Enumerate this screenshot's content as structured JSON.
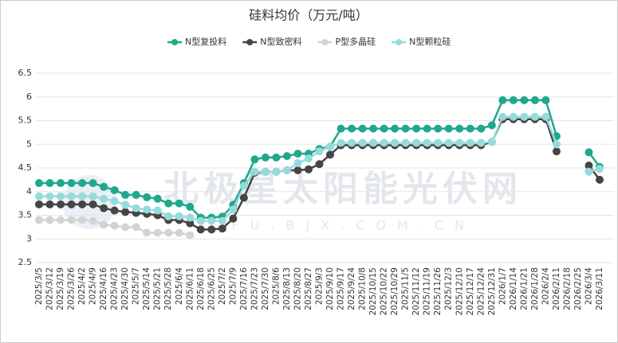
{
  "chart_data": {
    "type": "line",
    "title": "硅料均价（万元/吨）",
    "watermark": "北极星太阳能光伏网",
    "watermark_sub": "GFU.BJX.COM.CN",
    "categories": [
      "2025/3/5",
      "2025/3/12",
      "2025/3/19",
      "2025/3/26",
      "2025/4/2",
      "2025/4/9",
      "2025/4/16",
      "2025/4/23",
      "2025/4/30",
      "2025/5/7",
      "2025/5/14",
      "2025/5/21",
      "2025/5/28",
      "2025/6/4",
      "2025/6/11",
      "2025/6/18",
      "2025/6/25",
      "2025/7/2",
      "2025/7/9",
      "2025/7/16",
      "2025/7/23",
      "2025/7/30",
      "2025/8/6",
      "2025/8/13",
      "2025/8/20",
      "2025/8/27",
      "2025/9/3",
      "2025/9/10",
      "2025/9/17",
      "2025/9/24",
      "2025/10/8",
      "2025/10/15",
      "2025/10/22",
      "2025/10/29",
      "2025/11/5",
      "2025/11/12",
      "2025/11/19",
      "2025/11/26",
      "2025/12/3",
      "2025/12/10",
      "2025/12/17",
      "2025/12/24",
      "2025/12/31",
      "2026/1/7",
      "2026/1/14",
      "2026/1/21",
      "2026/1/28",
      "2026/2/4",
      "2026/2/11",
      "2026/2/18",
      "2026/2/25",
      "2026/3/4",
      "2026/3/11"
    ],
    "series": [
      {
        "name": "N型复投料",
        "color": "#1fa88c",
        "values": [
          4.18,
          4.18,
          4.18,
          4.18,
          4.18,
          4.18,
          4.1,
          4.03,
          3.93,
          3.93,
          3.88,
          3.85,
          3.75,
          3.75,
          3.68,
          3.45,
          3.45,
          3.47,
          3.72,
          4.18,
          4.68,
          4.72,
          4.72,
          4.75,
          4.8,
          4.8,
          4.9,
          4.95,
          5.33,
          5.33,
          5.33,
          5.33,
          5.33,
          5.33,
          5.33,
          5.33,
          5.33,
          5.33,
          5.33,
          5.33,
          5.33,
          5.33,
          5.4,
          5.93,
          5.93,
          5.93,
          5.93,
          5.93,
          5.17,
          null,
          null,
          4.83,
          4.52
        ]
      },
      {
        "name": "N型致密料",
        "color": "#454545",
        "values": [
          3.73,
          3.73,
          3.73,
          3.73,
          3.73,
          3.73,
          3.65,
          3.6,
          3.57,
          3.55,
          3.53,
          3.5,
          3.4,
          3.4,
          3.33,
          3.2,
          3.2,
          3.22,
          3.43,
          3.87,
          4.4,
          4.42,
          4.42,
          4.45,
          4.45,
          4.47,
          4.58,
          4.78,
          4.98,
          4.98,
          4.98,
          4.98,
          4.98,
          4.98,
          4.98,
          4.98,
          4.98,
          4.98,
          4.98,
          4.98,
          4.98,
          4.98,
          5.05,
          5.53,
          5.53,
          5.53,
          5.53,
          5.53,
          4.85,
          null,
          null,
          4.55,
          4.25
        ]
      },
      {
        "name": "P型多晶硅",
        "color": "#d3d3d3",
        "values": [
          3.4,
          3.4,
          3.4,
          3.4,
          3.4,
          3.38,
          3.3,
          3.28,
          3.25,
          3.25,
          3.13,
          3.13,
          3.13,
          3.13,
          3.08,
          null,
          null,
          null,
          null,
          null,
          null,
          null,
          null,
          null,
          null,
          null,
          null,
          null,
          null,
          null,
          null,
          null,
          null,
          null,
          null,
          null,
          null,
          null,
          null,
          null,
          null,
          null,
          null,
          null,
          null,
          null,
          null,
          null,
          null,
          null,
          null,
          null,
          null
        ]
      },
      {
        "name": "N型颗粒硅",
        "color": "#96dbdc",
        "values": [
          3.9,
          3.9,
          3.9,
          3.9,
          3.9,
          3.9,
          3.85,
          3.8,
          3.72,
          3.65,
          3.62,
          3.6,
          3.48,
          3.48,
          3.45,
          3.38,
          3.38,
          3.38,
          3.62,
          4.12,
          4.42,
          4.42,
          4.42,
          4.45,
          4.6,
          4.7,
          4.85,
          4.95,
          5.03,
          5.03,
          5.03,
          5.03,
          5.03,
          5.03,
          5.03,
          5.03,
          5.03,
          5.03,
          5.03,
          5.03,
          5.03,
          5.03,
          5.05,
          5.58,
          5.58,
          5.58,
          5.58,
          5.58,
          5.0,
          null,
          null,
          4.42,
          4.48
        ]
      }
    ],
    "ylim": [
      2.5,
      6.5
    ],
    "yticks": [
      2.5,
      3,
      3.5,
      4,
      4.5,
      5,
      5.5,
      6,
      6.5
    ],
    "grid": true
  }
}
